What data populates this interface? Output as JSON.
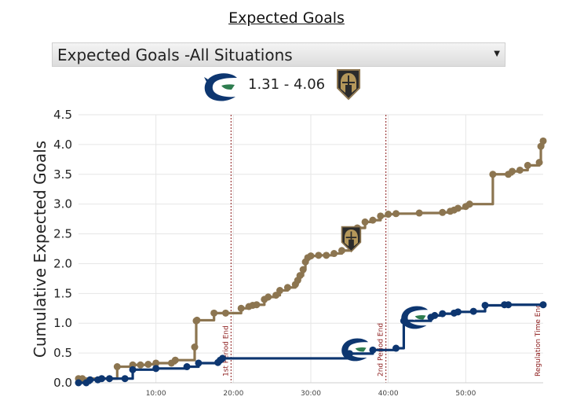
{
  "page": {
    "title": "Expected Goals"
  },
  "selector": {
    "value": "Expected Goals -All Situations",
    "arrow": "▼"
  },
  "score": {
    "text": "1.31 - 4.06"
  },
  "colors": {
    "vancouver": "#0d3670",
    "vegas": "#8c7550",
    "period_line": "#8b1a1a",
    "grid": "#e6e6e6"
  },
  "icons": {
    "home_logo": "canucks-orca-logo",
    "away_logo": "golden-knights-helmet-logo"
  },
  "chart_data": {
    "type": "line",
    "ylabel": "Cumulative Expected Goals",
    "xlabel": "",
    "xlim": [
      0,
      60
    ],
    "ylim": [
      0,
      4.5
    ],
    "yticks": [
      0.0,
      0.5,
      1.0,
      1.5,
      2.0,
      2.5,
      3.0,
      3.5,
      4.0,
      4.5
    ],
    "ytick_labels": [
      "0.0",
      "0.5",
      "1.0",
      "1.5",
      "2.0",
      "2.5",
      "3.0",
      "3.5",
      "4.0",
      "4.5"
    ],
    "xticks": [
      10,
      20,
      30,
      40,
      50
    ],
    "xtick_labels": [
      "10:00",
      "20:00",
      "30:00",
      "40:00",
      "50:00"
    ],
    "grid": true,
    "annotations": [
      {
        "x": 20,
        "label": "1st Period End"
      },
      {
        "x": 40,
        "label": "2nd Period End"
      },
      {
        "x": 60,
        "label": "Regulation Time End"
      }
    ],
    "series": [
      {
        "team": "Vegas",
        "style": "step",
        "x": [
          0.0,
          0.5,
          5.0,
          7.0,
          8.0,
          9.0,
          10.0,
          12.0,
          12.5,
          15.0,
          15.2,
          15.3,
          17.5,
          19.0,
          21.0,
          22.0,
          22.5,
          23.0,
          24.0,
          24.5,
          25.5,
          26.0,
          27.0,
          28.0,
          28.3,
          28.6,
          29.0,
          29.3,
          29.6,
          30.0,
          31.0,
          32.0,
          33.0,
          34.0,
          35.0,
          36.0,
          37.0,
          38.0,
          39.0,
          40.0,
          41.0,
          44.0,
          47.0,
          48.0,
          48.5,
          49.0,
          50.0,
          50.5,
          53.5,
          55.5,
          56.0,
          57.0,
          58.0,
          59.5,
          59.7,
          60.0
        ],
        "y": [
          0.07,
          0.07,
          0.27,
          0.3,
          0.3,
          0.31,
          0.33,
          0.33,
          0.38,
          0.6,
          1.04,
          1.05,
          1.17,
          1.17,
          1.25,
          1.28,
          1.3,
          1.31,
          1.4,
          1.44,
          1.47,
          1.55,
          1.6,
          1.65,
          1.72,
          1.8,
          1.9,
          2.03,
          2.1,
          2.13,
          2.14,
          2.14,
          2.17,
          2.22,
          2.5,
          2.6,
          2.7,
          2.73,
          2.8,
          2.83,
          2.84,
          2.85,
          2.86,
          2.88,
          2.9,
          2.93,
          2.96,
          3.0,
          3.5,
          3.5,
          3.55,
          3.57,
          3.65,
          3.7,
          3.97,
          4.06
        ]
      },
      {
        "team": "Vancouver",
        "style": "step",
        "x": [
          0.0,
          1.0,
          1.5,
          2.5,
          3.0,
          4.0,
          6.0,
          7.0,
          10.0,
          14.0,
          15.5,
          18.0,
          18.3,
          18.6,
          35.0,
          38.0,
          41.0,
          42.0,
          45.5,
          46.0,
          47.0,
          48.5,
          49.0,
          51.0,
          52.5,
          55.0,
          55.5,
          60.0
        ],
        "y": [
          0.0,
          0.0,
          0.05,
          0.05,
          0.07,
          0.07,
          0.07,
          0.22,
          0.24,
          0.27,
          0.33,
          0.34,
          0.38,
          0.41,
          0.49,
          0.55,
          0.58,
          1.04,
          1.1,
          1.13,
          1.16,
          1.17,
          1.19,
          1.2,
          1.3,
          1.31,
          1.31,
          1.31
        ]
      }
    ]
  }
}
